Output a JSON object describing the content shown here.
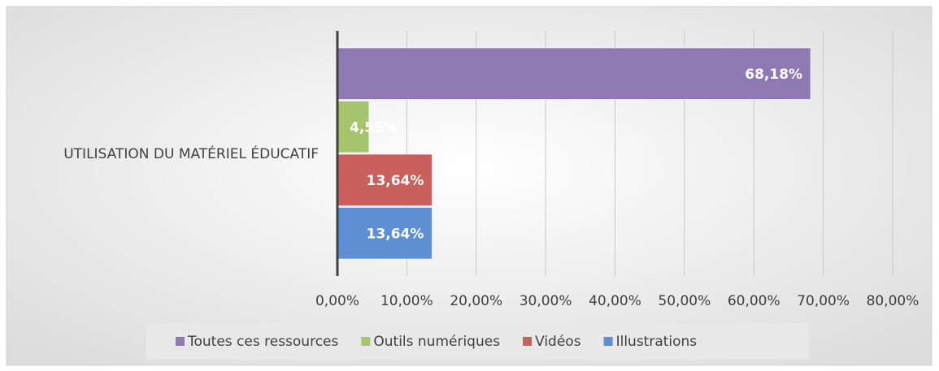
{
  "chart_data": {
    "type": "bar",
    "orientation": "horizontal",
    "categories": [
      "UTILISATION DU MATÉRIEL ÉDUCATIF"
    ],
    "series": [
      {
        "name": "Toutes ces ressources",
        "color": "#8f79b3",
        "values": [
          68.18
        ],
        "value_labels": [
          "68,18%"
        ]
      },
      {
        "name": "Outils numériques",
        "color": "#a6c46b",
        "values": [
          4.55
        ],
        "value_labels": [
          "4,55%"
        ]
      },
      {
        "name": "Vidéos",
        "color": "#c9605c",
        "values": [
          13.64
        ],
        "value_labels": [
          "13,64%"
        ]
      },
      {
        "name": "Illustrations",
        "color": "#5e8fd2",
        "values": [
          13.64
        ],
        "value_labels": [
          "13,64%"
        ]
      }
    ],
    "xlim": [
      0,
      80
    ],
    "xticks": [
      {
        "value": 0,
        "label": "0,00%"
      },
      {
        "value": 10,
        "label": "10,00%"
      },
      {
        "value": 20,
        "label": "20,00%"
      },
      {
        "value": 30,
        "label": "30,00%"
      },
      {
        "value": 40,
        "label": "40,00%"
      },
      {
        "value": 50,
        "label": "50,00%"
      },
      {
        "value": 60,
        "label": "60,00%"
      },
      {
        "value": 70,
        "label": "70,00%"
      },
      {
        "value": 80,
        "label": "80,00%"
      }
    ],
    "grid": true,
    "legend": "bottom"
  }
}
